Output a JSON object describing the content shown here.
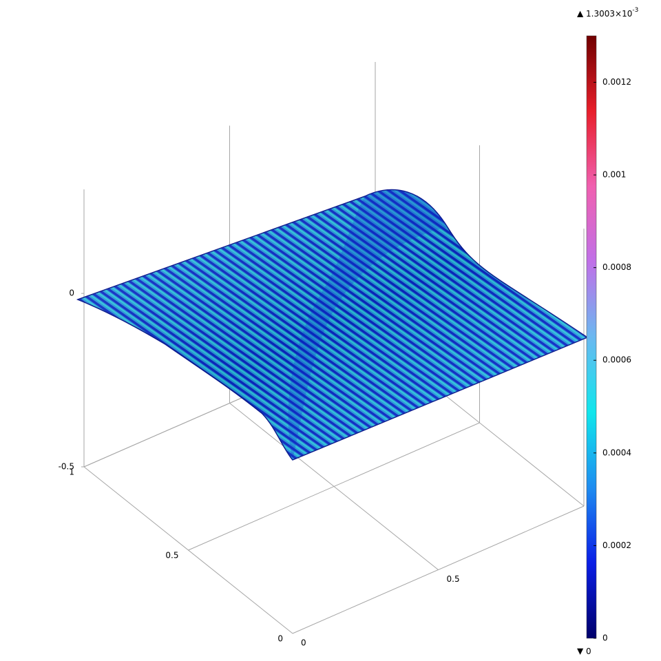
{
  "chart_data": {
    "type": "surface3d",
    "xlim": [
      0,
      1
    ],
    "xticks": [
      0,
      0.5
    ],
    "ylim": [
      0,
      1
    ],
    "yticks": [
      0,
      0.5,
      1
    ],
    "zlim": [
      -0.5,
      0.3
    ],
    "zticks": [
      -0.5,
      0
    ],
    "colorbar": {
      "max": {
        "value": 0.0013003,
        "mantissa": "1.3003×10",
        "exponent": "-3"
      },
      "min": 0,
      "ticks": [
        0,
        0.0002,
        0.0004,
        0.0006,
        0.0008,
        0.001,
        0.0012
      ],
      "colormap": [
        "#00006a",
        "#0a1ee6",
        "#1e8cf0",
        "#10e6ec",
        "#6ab8f0",
        "#c070e8",
        "#f060b0",
        "#e81e2a",
        "#700000"
      ]
    }
  }
}
